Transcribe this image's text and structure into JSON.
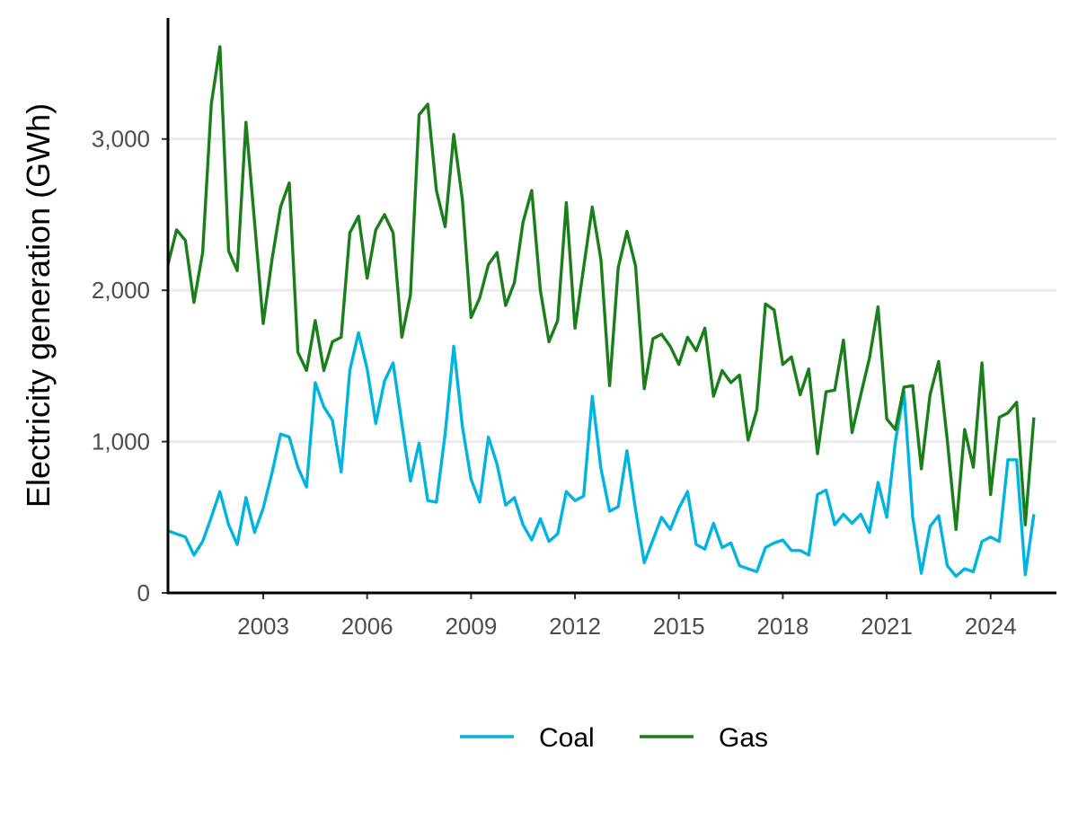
{
  "chart_data": {
    "type": "line",
    "title": "",
    "xlabel": "",
    "ylabel": "Electricity generation (GWh)",
    "xlim": [
      2000.25,
      2025.9
    ],
    "ylim": [
      0,
      3800
    ],
    "x_ticks": [
      2003,
      2006,
      2009,
      2012,
      2015,
      2018,
      2021,
      2024
    ],
    "x_tick_labels": [
      "2003",
      "2006",
      "2009",
      "2012",
      "2015",
      "2018",
      "2021",
      "2024"
    ],
    "y_ticks": [
      0,
      1000,
      2000,
      3000
    ],
    "y_tick_labels": [
      "0",
      "1,000",
      "2,000",
      "3,000"
    ],
    "grid": "horizontal major gridlines",
    "legend_position": "bottom",
    "x_start": 2000.25,
    "x_step": 0.25,
    "series": [
      {
        "name": "Coal",
        "color": "#00b4e0",
        "values": [
          410,
          390,
          370,
          250,
          340,
          500,
          670,
          450,
          320,
          630,
          400,
          560,
          790,
          1050,
          1030,
          830,
          700,
          1390,
          1230,
          1140,
          800,
          1470,
          1720,
          1480,
          1120,
          1400,
          1520,
          1120,
          740,
          990,
          610,
          600,
          1050,
          1630,
          1100,
          750,
          600,
          1030,
          850,
          580,
          630,
          450,
          350,
          490,
          340,
          390,
          670,
          610,
          640,
          1300,
          820,
          540,
          570,
          940,
          550,
          200,
          350,
          500,
          420,
          560,
          670,
          320,
          290,
          460,
          300,
          330,
          180,
          160,
          140,
          300,
          330,
          350,
          280,
          280,
          250,
          650,
          680,
          450,
          520,
          460,
          520,
          400,
          730,
          500,
          1000,
          1330,
          500,
          130,
          440,
          510,
          180,
          110,
          160,
          140,
          340,
          370,
          340,
          880,
          880,
          120,
          520
        ]
      },
      {
        "name": "Gas",
        "color": "#1a7f1a",
        "values": [
          2170,
          2400,
          2330,
          1920,
          2250,
          3230,
          3610,
          2260,
          2130,
          3110,
          2450,
          1780,
          2200,
          2550,
          2710,
          1590,
          1470,
          1800,
          1470,
          1660,
          1690,
          2380,
          2490,
          2080,
          2400,
          2500,
          2380,
          1690,
          1970,
          3160,
          3230,
          2660,
          2420,
          3030,
          2600,
          1820,
          1950,
          2170,
          2250,
          1900,
          2050,
          2450,
          2660,
          2000,
          1660,
          1800,
          2580,
          1750,
          2150,
          2550,
          2200,
          1370,
          2150,
          2390,
          2160,
          1350,
          1680,
          1710,
          1630,
          1510,
          1690,
          1600,
          1750,
          1300,
          1470,
          1390,
          1440,
          1010,
          1210,
          1910,
          1870,
          1510,
          1560,
          1310,
          1480,
          920,
          1330,
          1340,
          1670,
          1060,
          1310,
          1550,
          1890,
          1150,
          1080,
          1360,
          1370,
          820,
          1310,
          1530,
          1010,
          420,
          1080,
          830,
          1520,
          650,
          1160,
          1190,
          1260,
          450,
          1160
        ]
      }
    ]
  }
}
